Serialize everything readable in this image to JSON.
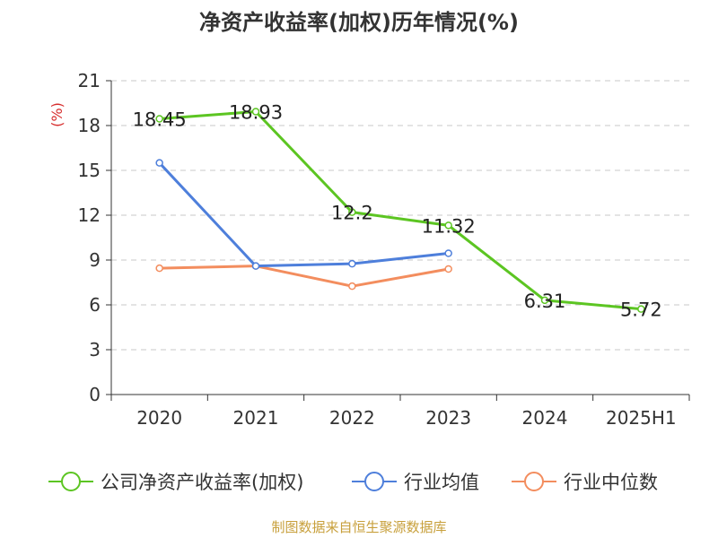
{
  "chart_data": {
    "type": "line",
    "title": "净资产收益率(加权)历年情况(%)",
    "ylabel": "(%)",
    "categories": [
      "2020",
      "2021",
      "2022",
      "2023",
      "2024",
      "2025H1"
    ],
    "ylim": [
      0,
      21
    ],
    "yticks": [
      0,
      3,
      6,
      9,
      12,
      15,
      18,
      21
    ],
    "grid": true,
    "legend_position": "bottom",
    "series": [
      {
        "name": "公司净资产收益率(加权)",
        "color": "#5cc522",
        "values": [
          18.45,
          18.93,
          12.2,
          11.32,
          6.31,
          5.72
        ],
        "show_labels": true
      },
      {
        "name": "行业均值",
        "color": "#4e7fdb",
        "values": [
          15.5,
          8.6,
          8.75,
          9.45,
          null,
          null
        ],
        "show_labels": false
      },
      {
        "name": "行业中位数",
        "color": "#f38d5e",
        "values": [
          8.45,
          8.6,
          7.25,
          8.4,
          null,
          null
        ],
        "show_labels": false
      }
    ]
  },
  "colors": {
    "ylabel": "#d62c2c",
    "source": "#c8a03c"
  },
  "source": "制图数据来自恒生聚源数据库"
}
